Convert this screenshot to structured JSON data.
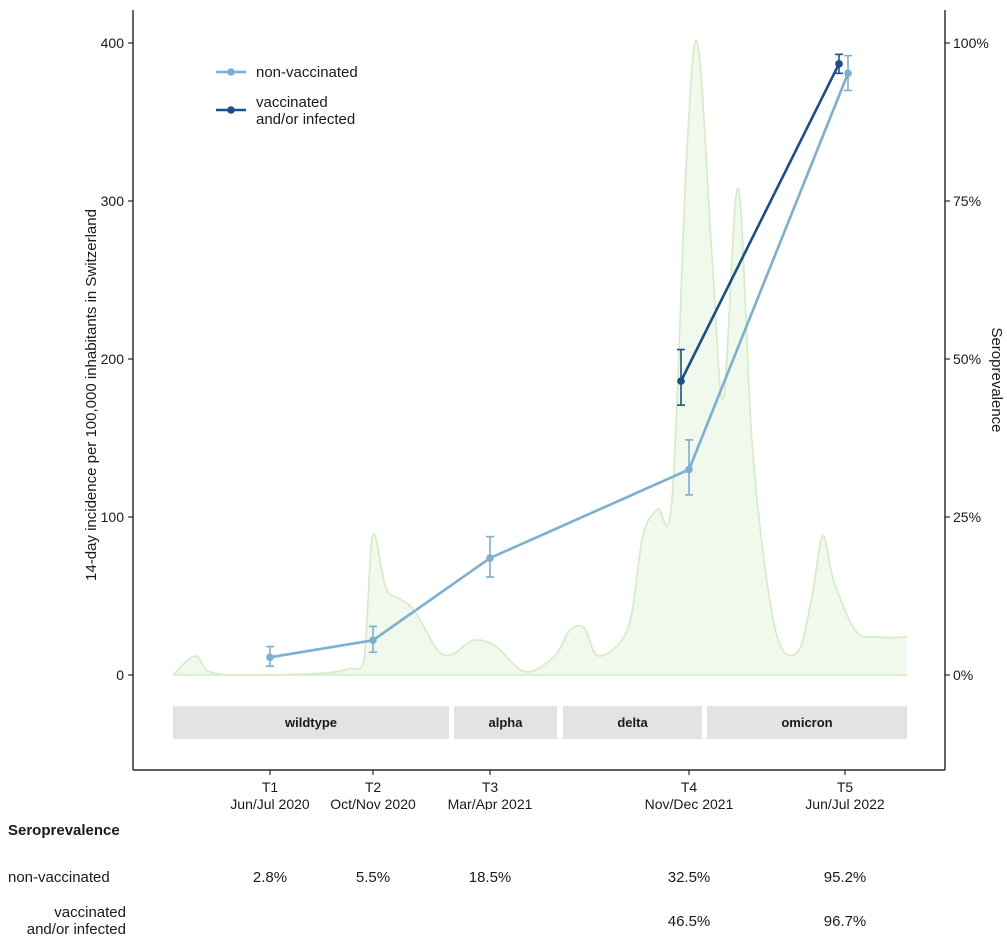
{
  "chart_data": {
    "type": "line",
    "ylabel_left": "14-day incidence per 100,000 inhabitants in Switzerland",
    "ylabel_right": "Seroprevalence",
    "ylim_left": [
      0,
      400
    ],
    "ylim_right": [
      "0%",
      "100%"
    ],
    "y_ticks_left": [
      "0",
      "100",
      "200",
      "300",
      "400"
    ],
    "y_ticks_right": [
      "0%",
      "25%",
      "50%",
      "75%",
      "100%"
    ],
    "timepoints": [
      {
        "label": "T1",
        "period": "Jun/Jul 2020"
      },
      {
        "label": "T2",
        "period": "Oct/Nov 2020"
      },
      {
        "label": "T3",
        "period": "Mar/Apr 2021"
      },
      {
        "label": "T4",
        "period": "Nov/Dec 2021"
      },
      {
        "label": "T5",
        "period": "Jun/Jul 2022"
      }
    ],
    "legend": {
      "position": "top-left",
      "entries": [
        "non-vaccinated",
        "vaccinated\n and/or infected"
      ]
    },
    "series": [
      {
        "name": "non-vaccinated",
        "color": "#7bafd4",
        "points": [
          {
            "t": "T1",
            "y": 2.8,
            "lo": 1.4,
            "hi": 4.5
          },
          {
            "t": "T2",
            "y": 5.5,
            "lo": 3.6,
            "hi": 7.7
          },
          {
            "t": "T3",
            "y": 18.5,
            "lo": 15.5,
            "hi": 21.9
          },
          {
            "t": "T4",
            "y": 32.5,
            "lo": 28.5,
            "hi": 37.2
          },
          {
            "t": "T5",
            "y": 95.2,
            "lo": 92.5,
            "hi": 98.0
          }
        ]
      },
      {
        "name": "vaccinated and/or infected",
        "color": "#1b4f8a",
        "points": [
          {
            "t": "T4",
            "y": 46.5,
            "lo": 42.7,
            "hi": 51.5
          },
          {
            "t": "T5",
            "y": 96.7,
            "lo": 95.2,
            "hi": 98.2
          }
        ]
      }
    ],
    "incidence": {
      "color": "#d2ecc4",
      "fill": "#f1f9ec",
      "points": [
        [
          0,
          0
        ],
        [
          0.03,
          12
        ],
        [
          0.05,
          2
        ],
        [
          0.1,
          0
        ],
        [
          0.2,
          1
        ],
        [
          0.24,
          4
        ],
        [
          0.26,
          9
        ],
        [
          0.272,
          88
        ],
        [
          0.29,
          55
        ],
        [
          0.31,
          48
        ],
        [
          0.33,
          40
        ],
        [
          0.36,
          16
        ],
        [
          0.38,
          13
        ],
        [
          0.41,
          22
        ],
        [
          0.44,
          18
        ],
        [
          0.48,
          2
        ],
        [
          0.52,
          12
        ],
        [
          0.54,
          28
        ],
        [
          0.56,
          30
        ],
        [
          0.58,
          12
        ],
        [
          0.62,
          30
        ],
        [
          0.64,
          88
        ],
        [
          0.66,
          105
        ],
        [
          0.68,
          112
        ],
        [
          0.7,
          330
        ],
        [
          0.715,
          399
        ],
        [
          0.735,
          260
        ],
        [
          0.75,
          175
        ],
        [
          0.77,
          308
        ],
        [
          0.79,
          140
        ],
        [
          0.82,
          30
        ],
        [
          0.85,
          14
        ],
        [
          0.87,
          48
        ],
        [
          0.885,
          88
        ],
        [
          0.9,
          60
        ],
        [
          0.93,
          28
        ],
        [
          0.96,
          24
        ],
        [
          1,
          24
        ]
      ]
    },
    "variants": [
      {
        "name": "wildtype"
      },
      {
        "name": "alpha"
      },
      {
        "name": "delta"
      },
      {
        "name": "omicron"
      }
    ]
  },
  "table": {
    "title": "Seroprevalence",
    "rows": [
      {
        "label": "non-vaccinated",
        "values": [
          "2.8%",
          "5.5%",
          "18.5%",
          "32.5%",
          "95.2%"
        ]
      },
      {
        "label_line1": "vaccinated",
        "label_line2": "and/or infected",
        "values": [
          "",
          "",
          "",
          "46.5%",
          "96.7%"
        ]
      }
    ]
  }
}
